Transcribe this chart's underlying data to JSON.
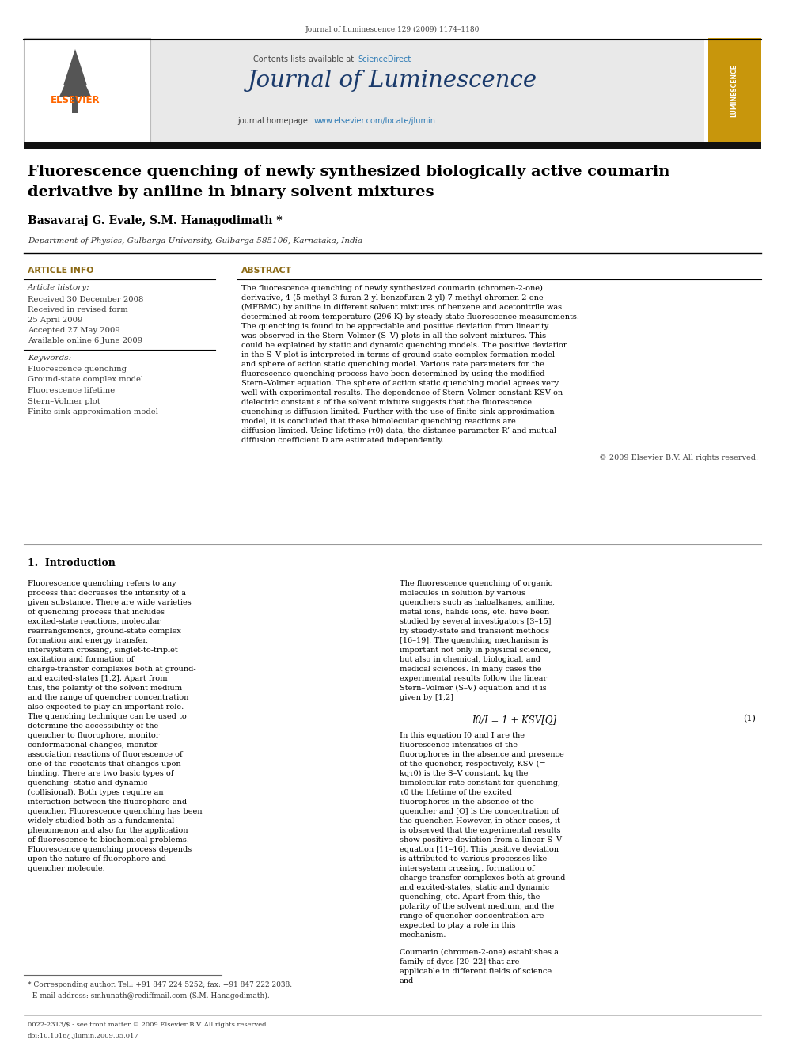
{
  "page_width": 9.92,
  "page_height": 13.23,
  "bg_color": "#ffffff",
  "top_citation": "Journal of Luminescence 129 (2009) 1174–1180",
  "header_bg": "#e8e8e8",
  "header_contents": "Contents lists available at ScienceDirect",
  "header_journal": "Journal of Luminescence",
  "sciencedirect_color": "#2e7bb5",
  "url_color": "#2e7bb5",
  "journal_title_color": "#1a3a6b",
  "title_line1": "Fluorescence quenching of newly synthesized biologically active coumarin",
  "title_line2": "derivative by aniline in binary solvent mixtures",
  "authors": "Basavaraj G. Evale, S.M. Hanagodimath *",
  "affiliation": "Department of Physics, Gulbarga University, Gulbarga 585106, Karnataka, India",
  "article_info_header": "ARTICLE INFO",
  "abstract_header": "ABSTRACT",
  "article_history_label": "Article history:",
  "received1": "Received 30 December 2008",
  "received2": "Received in revised form",
  "received2b": "25 April 2009",
  "accepted": "Accepted 27 May 2009",
  "available": "Available online 6 June 2009",
  "keywords_label": "Keywords:",
  "keywords": [
    "Fluorescence quenching",
    "Ground-state complex model",
    "Fluorescence lifetime",
    "Stern–Volmer plot",
    "Finite sink approximation model"
  ],
  "abstract_text": "The fluorescence quenching of newly synthesized coumarin (chromen-2-one) derivative, 4-(5-methyl-3-furan-2-yl-benzofuran-2-yl)-7-methyl-chromen-2-one (MFBMC) by aniline in different solvent mixtures of benzene and acetonitrile was determined at room temperature (296 K) by steady-state fluorescence measurements. The quenching is found to be appreciable and positive deviation from linearity was observed in the Stern–Volmer (S–V) plots in all the solvent mixtures. This could be explained by static and dynamic quenching models. The positive deviation in the S–V plot is interpreted in terms of ground-state complex formation model and sphere of action static quenching model. Various rate parameters for the fluorescence quenching process have been determined by using the modified Stern–Volmer equation. The sphere of action static quenching model agrees very well with experimental results. The dependence of Stern–Volmer constant KSV on dielectric constant ε of the solvent mixture suggests that the fluorescence quenching is diffusion-limited. Further with the use of finite sink approximation model, it is concluded that these bimolecular quenching reactions are diffusion-limited. Using lifetime (τ0) data, the distance parameter R’ and mutual diffusion coefficient D are estimated independently.",
  "copyright": "© 2009 Elsevier B.V. All rights reserved.",
  "section1_title": "1.  Introduction",
  "intro_col1": "   Fluorescence quenching refers to any process that decreases the intensity of a given substance. There are wide varieties of quenching process that includes excited-state reactions, molecular rearrangements, ground-state complex formation and energy transfer, intersystem crossing, singlet-to-triplet excitation and formation of charge-transfer complexes both at ground- and excited-states [1,2]. Apart from this, the polarity of the solvent medium and the range of quencher concentration also expected to play an important role. The quenching technique can be used to determine the accessibility of the quencher to fluorophore, monitor conformational changes, monitor association reactions of fluorescence of one of the reactants that changes upon binding. There are two basic types of quenching: static and dynamic (collisional). Both types require an interaction between the fluorophore and quencher. Fluorescence quenching has been widely studied both as a fundamental phenomenon and also for the application of fluorescence to biochemical problems. Fluorescence quenching process depends upon the nature of fluorophore and quencher molecule.",
  "intro_col2": "   The fluorescence quenching of organic molecules in solution by various quenchers such as haloalkanes, aniline, metal ions, halide ions, etc. have been studied by several investigators [3–15] by steady-state and transient methods [16–19]. The quenching mechanism is important not only in physical science, but also in chemical, biological, and medical sciences. In many cases the experimental results follow the linear Stern–Volmer (S–V) equation and it is given by [1,2]",
  "equation": "I0/I = 1 + KSV[Q]",
  "eq_number": "(1)",
  "eq_text": "   In this equation I0 and I are the fluorescence intensities of the fluorophores in the absence and presence of the quencher, respectively, KSV (= kqτ0) is the S–V constant, kq the bimolecular rate constant for quenching, τ0 the lifetime of the excited fluorophores in the absence of the quencher and [Q] is the concentration of the quencher. However, in other cases, it is observed that the experimental results show positive deviation from a linear S–V equation [11–16]. This positive deviation is attributed to various processes like intersystem crossing, formation of charge-transfer complexes both at ground- and excited-states, static and dynamic quenching, etc. Apart from this, the polarity of the solvent medium, and the range of quencher concentration are expected to play a role in this mechanism.",
  "col2_end": "   Coumarin (chromen-2-one) establishes a family of dyes [20–22] that are applicable in different fields of science and",
  "footnote": "* Corresponding author. Tel.: +91 847 224 5252; fax: +91 847 222 2038.",
  "footnote2": "  E-mail address: smhunath@rediffmail.com (S.M. Hanagodimath).",
  "footer_left": "0022-2313/$ - see front matter © 2009 Elsevier B.V. All rights reserved.",
  "footer_doi": "doi:10.1016/j.jlumin.2009.05.017",
  "elsevier_orange": "#FF6600",
  "article_info_color": "#8B6914"
}
